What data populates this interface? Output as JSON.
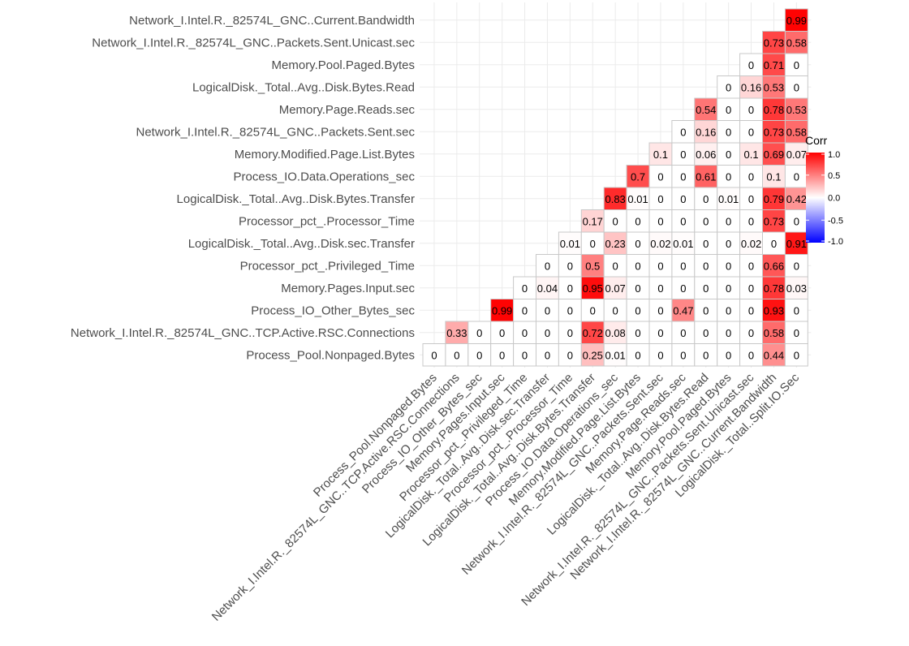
{
  "chart_data": {
    "type": "heatmap",
    "x_labels": [
      "Process_Pool.Nonpaged.Bytes",
      "Network_I.Intel.R._82574L_GNC..TCP.Active.RSC.Connections",
      "Process_IO_Other_Bytes_sec",
      "Memory.Pages.Input.sec",
      "Processor_pct_.Privileged_Time",
      "LogicalDisk._Total..Avg..Disk.sec.Transfer",
      "Processor_pct_.Processor_Time",
      "LogicalDisk._Total..Avg..Disk.Bytes.Transfer",
      "Process_IO.Data.Operations_sec",
      "Memory.Modified.Page.List.Bytes",
      "Network_I.Intel.R._82574L_GNC..Packets.Sent.sec",
      "Memory.Page.Reads.sec",
      "LogicalDisk._Total..Avg..Disk.Bytes.Read",
      "Memory.Pool.Paged.Bytes",
      "Network_I.Intel.R._82574L_GNC..Packets.Sent.Unicast.sec",
      "Network_I.Intel.R._82574L_GNC..Current.Bandwidth",
      "LogicalDisk._Total..Split.IO.Sec"
    ],
    "y_labels": [
      "Network_I.Intel.R._82574L_GNC..Current.Bandwidth",
      "Network_I.Intel.R._82574L_GNC..Packets.Sent.Unicast.sec",
      "Memory.Pool.Paged.Bytes",
      "LogicalDisk._Total..Avg..Disk.Bytes.Read",
      "Memory.Page.Reads.sec",
      "Network_I.Intel.R._82574L_GNC..Packets.Sent.sec",
      "Memory.Modified.Page.List.Bytes",
      "Process_IO.Data.Operations_sec",
      "LogicalDisk._Total..Avg..Disk.Bytes.Transfer",
      "Processor_pct_.Processor_Time",
      "LogicalDisk._Total..Avg..Disk.sec.Transfer",
      "Processor_pct_.Privileged_Time",
      "Memory.Pages.Input.sec",
      "Process_IO_Other_Bytes_sec",
      "Network_I.Intel.R._82574L_GNC..TCP.Active.RSC.Connections",
      "Process_Pool.Nonpaged.Bytes"
    ],
    "values": [
      [
        null,
        null,
        null,
        null,
        null,
        null,
        null,
        null,
        null,
        null,
        null,
        null,
        null,
        null,
        null,
        null,
        0.99
      ],
      [
        null,
        null,
        null,
        null,
        null,
        null,
        null,
        null,
        null,
        null,
        null,
        null,
        null,
        null,
        null,
        0.73,
        0.58
      ],
      [
        null,
        null,
        null,
        null,
        null,
        null,
        null,
        null,
        null,
        null,
        null,
        null,
        null,
        null,
        0,
        0.71,
        0
      ],
      [
        null,
        null,
        null,
        null,
        null,
        null,
        null,
        null,
        null,
        null,
        null,
        null,
        null,
        0,
        0.16,
        0.53,
        0
      ],
      [
        null,
        null,
        null,
        null,
        null,
        null,
        null,
        null,
        null,
        null,
        null,
        null,
        0.54,
        0,
        0,
        0.78,
        0.53
      ],
      [
        null,
        null,
        null,
        null,
        null,
        null,
        null,
        null,
        null,
        null,
        null,
        0,
        0.16,
        0,
        0,
        0.73,
        0.58
      ],
      [
        null,
        null,
        null,
        null,
        null,
        null,
        null,
        null,
        null,
        null,
        0.1,
        0,
        0.06,
        0,
        0.1,
        0.69,
        0.07
      ],
      [
        null,
        null,
        null,
        null,
        null,
        null,
        null,
        null,
        null,
        0.7,
        0,
        0,
        0.61,
        0,
        0,
        0.1,
        0
      ],
      [
        null,
        null,
        null,
        null,
        null,
        null,
        null,
        null,
        0.83,
        0.01,
        0,
        0,
        0,
        0.01,
        0,
        0.79,
        0.42
      ],
      [
        null,
        null,
        null,
        null,
        null,
        null,
        null,
        0.17,
        0,
        0,
        0,
        0,
        0,
        0,
        0,
        0.73,
        0
      ],
      [
        null,
        null,
        null,
        null,
        null,
        null,
        0.01,
        0,
        0.23,
        0,
        0.02,
        0.01,
        0,
        0,
        0.02,
        0,
        0.91
      ],
      [
        null,
        null,
        null,
        null,
        null,
        0,
        0,
        0.5,
        0,
        0,
        0,
        0,
        0,
        0,
        0,
        0.66,
        0
      ],
      [
        null,
        null,
        null,
        null,
        0,
        0.04,
        0,
        0.95,
        0.07,
        0,
        0,
        0,
        0,
        0,
        0,
        0.78,
        0.03
      ],
      [
        null,
        null,
        null,
        0.99,
        0,
        0,
        0,
        0,
        0,
        0,
        0,
        0.47,
        0,
        0,
        0,
        0.93,
        0
      ],
      [
        null,
        0.33,
        0,
        0,
        0,
        0,
        0,
        0.72,
        0.08,
        0,
        0,
        0,
        0,
        0,
        0,
        0.58,
        0
      ],
      [
        0,
        0,
        0,
        0,
        0,
        0,
        0,
        0.25,
        0.01,
        0,
        0,
        0,
        0,
        0,
        0,
        0.44,
        0
      ]
    ],
    "value_labels": [
      [
        null,
        null,
        null,
        null,
        null,
        null,
        null,
        null,
        null,
        null,
        null,
        null,
        null,
        null,
        null,
        null,
        "0.99"
      ],
      [
        null,
        null,
        null,
        null,
        null,
        null,
        null,
        null,
        null,
        null,
        null,
        null,
        null,
        null,
        null,
        "0.73",
        "0.58"
      ],
      [
        null,
        null,
        null,
        null,
        null,
        null,
        null,
        null,
        null,
        null,
        null,
        null,
        null,
        null,
        "0",
        "0.71",
        "0"
      ],
      [
        null,
        null,
        null,
        null,
        null,
        null,
        null,
        null,
        null,
        null,
        null,
        null,
        null,
        "0",
        "0.16",
        "0.53",
        "0"
      ],
      [
        null,
        null,
        null,
        null,
        null,
        null,
        null,
        null,
        null,
        null,
        null,
        null,
        "0.54",
        "0",
        "0",
        "0.78",
        "0.53"
      ],
      [
        null,
        null,
        null,
        null,
        null,
        null,
        null,
        null,
        null,
        null,
        null,
        "0",
        "0.16",
        "0",
        "0",
        "0.73",
        "0.58"
      ],
      [
        null,
        null,
        null,
        null,
        null,
        null,
        null,
        null,
        null,
        null,
        "0.1",
        "0",
        "0.06",
        "0",
        "0.1",
        "0.69",
        "0.07"
      ],
      [
        null,
        null,
        null,
        null,
        null,
        null,
        null,
        null,
        null,
        "0.7",
        "0",
        "0",
        "0.61",
        "0",
        "0",
        "0.1",
        "0"
      ],
      [
        null,
        null,
        null,
        null,
        null,
        null,
        null,
        null,
        "0.83",
        "0.01",
        "0",
        "0",
        "0",
        "0.01",
        "0",
        "0.79",
        "0.42"
      ],
      [
        null,
        null,
        null,
        null,
        null,
        null,
        null,
        "0.17",
        "0",
        "0",
        "0",
        "0",
        "0",
        "0",
        "0",
        "0.73",
        "0"
      ],
      [
        null,
        null,
        null,
        null,
        null,
        null,
        "0.01",
        "0",
        "0.23",
        "0",
        "0.02",
        "0.01",
        "0",
        "0",
        "0.02",
        "0",
        "0.91"
      ],
      [
        null,
        null,
        null,
        null,
        null,
        "0",
        "0",
        "0.5",
        "0",
        "0",
        "0",
        "0",
        "0",
        "0",
        "0",
        "0.66",
        "0"
      ],
      [
        null,
        null,
        null,
        null,
        "0",
        "0.04",
        "0",
        "0.95",
        "0.07",
        "0",
        "0",
        "0",
        "0",
        "0",
        "0",
        "0.78",
        "0.03"
      ],
      [
        null,
        null,
        null,
        "0.99",
        "0",
        "0",
        "0",
        "0",
        "0",
        "0",
        "0",
        "0.47",
        "0",
        "0",
        "0",
        "0.93",
        "0"
      ],
      [
        null,
        "0.33",
        "0",
        "0",
        "0",
        "0",
        "0",
        "0.72",
        "0.08",
        "0",
        "0",
        "0",
        "0",
        "0",
        "0",
        "0.58",
        "0"
      ],
      [
        "0",
        "0",
        "0",
        "0",
        "0",
        "0",
        "0",
        "0.25",
        "0.01",
        "0",
        "0",
        "0",
        "0",
        "0",
        "0",
        "0.44",
        "0"
      ]
    ],
    "legend": {
      "title": "Corr",
      "ticks": [
        "1.0",
        "0.5",
        "0.0",
        "-0.5",
        "-1.0"
      ],
      "tick_values": [
        1.0,
        0.5,
        0.0,
        -0.5,
        -1.0
      ],
      "range": [
        -1,
        1
      ],
      "colors": {
        "low": "#0000ff",
        "mid": "#ffffff",
        "high": "#ff0000"
      },
      "placement": "right"
    },
    "grid": true,
    "colors": {
      "grid": "#ebebeb",
      "tile_border": "#c8c8c8",
      "axis_text": "#4d4d4d"
    }
  }
}
